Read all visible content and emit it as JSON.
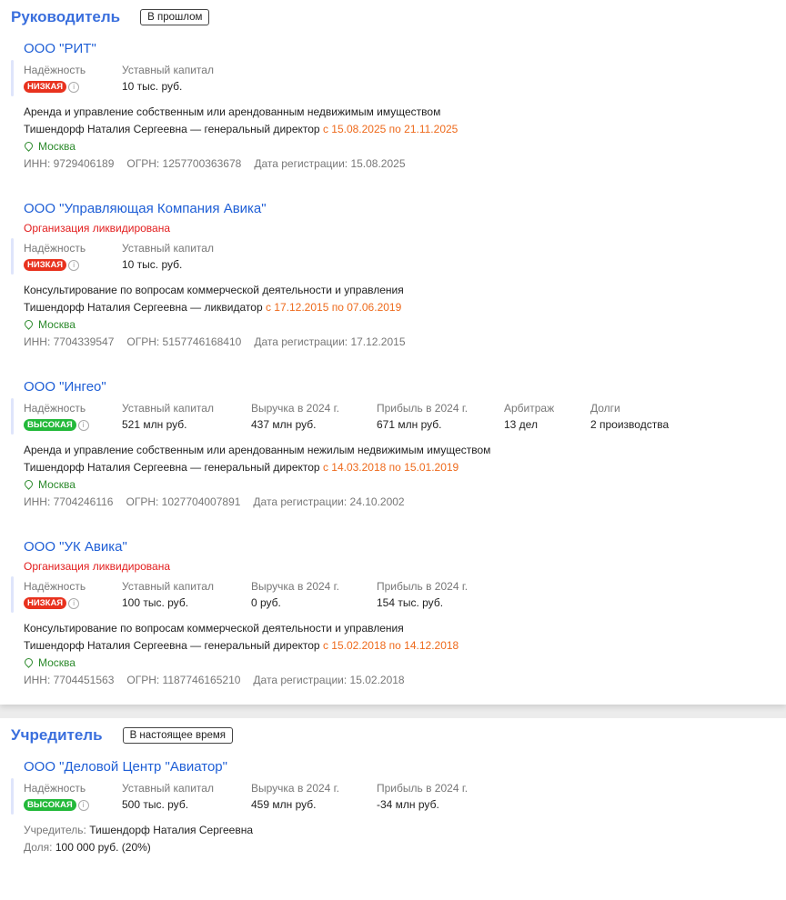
{
  "sections": [
    {
      "title": "Руководитель",
      "tag": "В прошлом",
      "companies": [
        {
          "name": "ООО \"РИТ\"",
          "liquidated": null,
          "reliability_label": "Надёжность",
          "reliability": "НИЗКАЯ",
          "level": "low",
          "metrics": [
            {
              "label": "Уставный капитал",
              "value": "10 тыс. руб."
            }
          ],
          "activity": "Аренда и управление собственным или арендованным недвижимым имуществом",
          "person": "Тишендорф Наталия Сергеевна — генеральный директор",
          "period": "с 15.08.2025 по 21.11.2025",
          "city": "Москва",
          "inn": "ИНН: 9729406189",
          "ogrn": "ОГРН: 1257700363678",
          "reg": "Дата регистрации: 15.08.2025"
        },
        {
          "name": "ООО \"Управляющая Компания Авика\"",
          "liquidated": "Организация ликвидирована",
          "reliability_label": "Надёжность",
          "reliability": "НИЗКАЯ",
          "level": "low",
          "metrics": [
            {
              "label": "Уставный капитал",
              "value": "10 тыс. руб."
            }
          ],
          "activity": "Консультирование по вопросам коммерческой деятельности и управления",
          "person": "Тишендорф Наталия Сергеевна — ликвидатор",
          "period": "с 17.12.2015 по 07.06.2019",
          "city": "Москва",
          "inn": "ИНН: 7704339547",
          "ogrn": "ОГРН: 5157746168410",
          "reg": "Дата регистрации: 17.12.2015"
        },
        {
          "name": "ООО \"Ингео\"",
          "liquidated": null,
          "reliability_label": "Надёжность",
          "reliability": "ВЫСОКАЯ",
          "level": "high",
          "metrics": [
            {
              "label": "Уставный капитал",
              "value": "521 млн руб."
            },
            {
              "label": "Выручка в 2024 г.",
              "value": "437 млн руб."
            },
            {
              "label": "Прибыль в 2024 г.",
              "value": "671 млн руб."
            },
            {
              "label": "Арбитраж",
              "value": "13 дел"
            },
            {
              "label": "Долги",
              "value": "2 производства"
            }
          ],
          "activity": "Аренда и управление собственным или арендованным нежилым недвижимым имуществом",
          "person": "Тишендорф Наталия Сергеевна — генеральный директор",
          "period": "с 14.03.2018 по 15.01.2019",
          "city": "Москва",
          "inn": "ИНН: 7704246116",
          "ogrn": "ОГРН: 1027704007891",
          "reg": "Дата регистрации: 24.10.2002"
        },
        {
          "name": "ООО \"УК Авика\"",
          "liquidated": "Организация ликвидирована",
          "reliability_label": "Надёжность",
          "reliability": "НИЗКАЯ",
          "level": "low",
          "metrics": [
            {
              "label": "Уставный капитал",
              "value": "100 тыс. руб."
            },
            {
              "label": "Выручка в 2024 г.",
              "value": "0 руб."
            },
            {
              "label": "Прибыль в 2024 г.",
              "value": "154 тыс. руб."
            }
          ],
          "activity": "Консультирование по вопросам коммерческой деятельности и управления",
          "person": "Тишендорф Наталия Сергеевна — генеральный директор",
          "period": "с 15.02.2018 по 14.12.2018",
          "city": "Москва",
          "inn": "ИНН: 7704451563",
          "ogrn": "ОГРН: 1187746165210",
          "reg": "Дата регистрации: 15.02.2018"
        }
      ]
    },
    {
      "title": "Учредитель",
      "tag": "В настоящее время",
      "companies": [
        {
          "name": "ООО \"Деловой Центр \"Авиатор\"",
          "liquidated": null,
          "reliability_label": "Надёжность",
          "reliability": "ВЫСОКАЯ",
          "level": "high",
          "metrics": [
            {
              "label": "Уставный капитал",
              "value": "500 тыс. руб."
            },
            {
              "label": "Выручка в 2024 г.",
              "value": "459 млн руб."
            },
            {
              "label": "Прибыль в 2024 г.",
              "value": "-34 млн руб."
            }
          ],
          "founder_label": "Учредитель:",
          "founder": "Тишендорф Наталия Сергеевна",
          "share_label": "Доля:",
          "share": "100 000 руб. (20%)"
        }
      ]
    }
  ],
  "colors": {
    "title": "#3a6fdd",
    "link": "#1f5fd6",
    "low": "#e8321e",
    "high": "#23b93a",
    "liquidated": "#e21d1d",
    "period": "#ee6a1c",
    "city": "#2c8a2c"
  },
  "icons": {
    "info": "info-circle-icon",
    "location": "map-pin-icon"
  }
}
